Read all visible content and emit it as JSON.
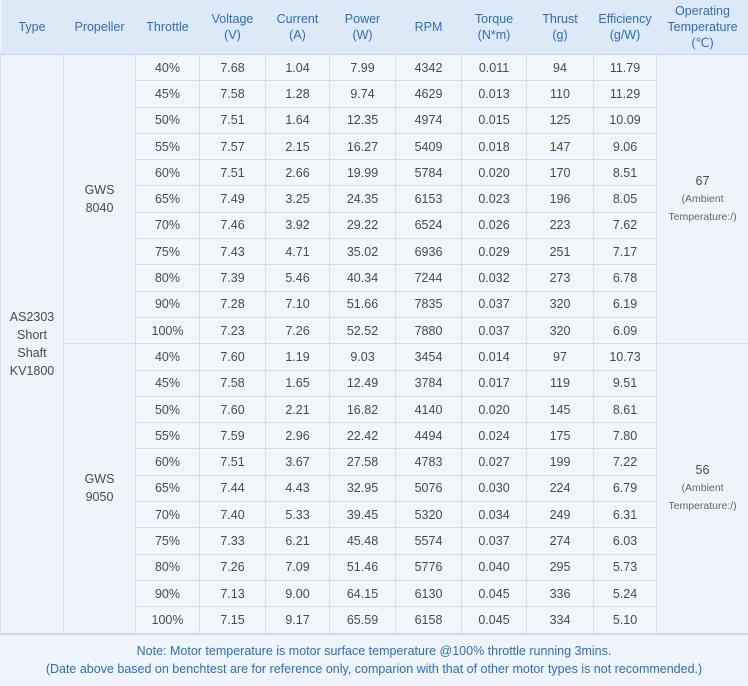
{
  "headers": {
    "type": "Type",
    "propeller": "Propeller",
    "throttle": "Throttle",
    "voltage": "Voltage",
    "voltage_unit": "(V)",
    "current": "Current",
    "current_unit": "(A)",
    "power": "Power",
    "power_unit": "(W)",
    "rpm": "RPM",
    "torque": "Torque",
    "torque_unit": "(N*m)",
    "thrust": "Thrust",
    "thrust_unit": "(g)",
    "efficiency": "Efficiency",
    "efficiency_unit": "(g/W)",
    "optemp_line1": "Operating",
    "optemp_line2": "Temperature",
    "optemp_unit": "(℃)"
  },
  "motor": {
    "line1": "AS2303",
    "line2": "Short Shaft",
    "line3": "KV1800"
  },
  "groups": [
    {
      "prop_line1": "GWS",
      "prop_line2": "8040",
      "temp": "67",
      "temp_note1": "(Ambient",
      "temp_note2": "Temperature:/)",
      "rows": [
        [
          "40%",
          "7.68",
          "1.04",
          "7.99",
          "4342",
          "0.011",
          "94",
          "11.79"
        ],
        [
          "45%",
          "7.58",
          "1.28",
          "9.74",
          "4629",
          "0.013",
          "110",
          "11.29"
        ],
        [
          "50%",
          "7.51",
          "1.64",
          "12.35",
          "4974",
          "0.015",
          "125",
          "10.09"
        ],
        [
          "55%",
          "7.57",
          "2.15",
          "16.27",
          "5409",
          "0.018",
          "147",
          "9.06"
        ],
        [
          "60%",
          "7.51",
          "2.66",
          "19.99",
          "5784",
          "0.020",
          "170",
          "8.51"
        ],
        [
          "65%",
          "7.49",
          "3.25",
          "24.35",
          "6153",
          "0.023",
          "196",
          "8.05"
        ],
        [
          "70%",
          "7.46",
          "3.92",
          "29.22",
          "6524",
          "0.026",
          "223",
          "7.62"
        ],
        [
          "75%",
          "7.43",
          "4.71",
          "35.02",
          "6936",
          "0.029",
          "251",
          "7.17"
        ],
        [
          "80%",
          "7.39",
          "5.46",
          "40.34",
          "7244",
          "0.032",
          "273",
          "6.78"
        ],
        [
          "90%",
          "7.28",
          "7.10",
          "51.66",
          "7835",
          "0.037",
          "320",
          "6.19"
        ],
        [
          "100%",
          "7.23",
          "7.26",
          "52.52",
          "7880",
          "0.037",
          "320",
          "6.09"
        ]
      ]
    },
    {
      "prop_line1": "GWS",
      "prop_line2": "9050",
      "temp": "56",
      "temp_note1": "(Ambient",
      "temp_note2": "Temperature:/)",
      "rows": [
        [
          "40%",
          "7.60",
          "1.19",
          "9.03",
          "3454",
          "0.014",
          "97",
          "10.73"
        ],
        [
          "45%",
          "7.58",
          "1.65",
          "12.49",
          "3784",
          "0.017",
          "119",
          "9.51"
        ],
        [
          "50%",
          "7.60",
          "2.21",
          "16.82",
          "4140",
          "0.020",
          "145",
          "8.61"
        ],
        [
          "55%",
          "7.59",
          "2.96",
          "22.42",
          "4494",
          "0.024",
          "175",
          "7.80"
        ],
        [
          "60%",
          "7.51",
          "3.67",
          "27.58",
          "4783",
          "0.027",
          "199",
          "7.22"
        ],
        [
          "65%",
          "7.44",
          "4.43",
          "32.95",
          "5076",
          "0.030",
          "224",
          "6.79"
        ],
        [
          "70%",
          "7.40",
          "5.33",
          "39.45",
          "5320",
          "0.034",
          "249",
          "6.31"
        ],
        [
          "75%",
          "7.33",
          "6.21",
          "45.48",
          "5574",
          "0.037",
          "274",
          "6.03"
        ],
        [
          "80%",
          "7.26",
          "7.09",
          "51.46",
          "5776",
          "0.040",
          "295",
          "5.73"
        ],
        [
          "90%",
          "7.13",
          "9.00",
          "64.15",
          "6130",
          "0.045",
          "336",
          "5.24"
        ],
        [
          "100%",
          "7.15",
          "9.17",
          "65.59",
          "6158",
          "0.045",
          "334",
          "5.10"
        ]
      ]
    }
  ],
  "footer": {
    "note1": "Note: Motor temperature is motor surface temperature @100% throttle running 3mins.",
    "note2": "(Date above based on benchtest are for reference only, comparion with that of other motor types is not recommended.)"
  },
  "colors": {
    "header_text": "#2d6fbd",
    "header_bg": "#dde9f6",
    "body_bg": "#eef4fa",
    "cell_border": "#d3dfec"
  }
}
